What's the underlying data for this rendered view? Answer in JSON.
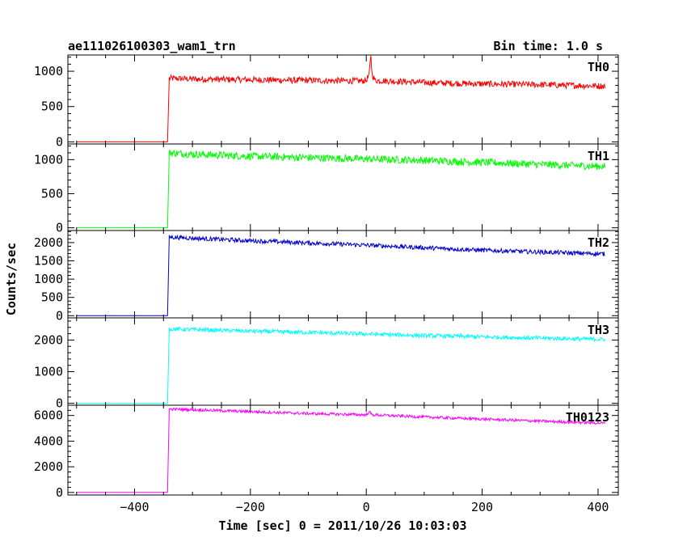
{
  "header": {
    "title": "ae111026100303_wam1_trn",
    "bin_time": "Bin time: 1.0 s"
  },
  "axes": {
    "xlabel": "Time [sec] 0 = 2011/10/26 10:03:03",
    "ylabel": "Counts/sec"
  },
  "chart_data": {
    "type": "line",
    "title": "ae111026100303_wam1_trn",
    "subtitle": "Bin time: 1.0 s",
    "xlabel": "Time [sec] 0 = 2011/10/26 10:03:03",
    "ylabel": "Counts/sec",
    "xlim": [
      -515,
      435
    ],
    "x_ticks": [
      -400,
      -200,
      0,
      200,
      400
    ],
    "x_tick_labels": [
      "−400",
      "−200",
      "0",
      "200",
      "400"
    ],
    "grid": false,
    "panels": [
      {
        "name": "TH0",
        "color": "#ff0000",
        "ylim": [
          -30,
          1230
        ],
        "y_ticks": [
          0,
          500,
          1000
        ],
        "baseline": 0,
        "points": [
          [
            -500,
            0
          ],
          [
            -343,
            0
          ],
          [
            -340,
            900
          ],
          [
            -300,
            890
          ],
          [
            -200,
            880
          ],
          [
            -100,
            870
          ],
          [
            -10,
            862
          ],
          [
            0,
            870
          ],
          [
            5,
            950
          ],
          [
            8,
            1230
          ],
          [
            10,
            960
          ],
          [
            15,
            870
          ],
          [
            100,
            840
          ],
          [
            200,
            820
          ],
          [
            300,
            810
          ],
          [
            412,
            790
          ]
        ],
        "noise": 45
      },
      {
        "name": "TH1",
        "color": "#00ff00",
        "ylim": [
          -40,
          1230
        ],
        "y_ticks": [
          0,
          500,
          1000
        ],
        "baseline": 0,
        "points": [
          [
            -500,
            0
          ],
          [
            -343,
            0
          ],
          [
            -340,
            1100
          ],
          [
            -300,
            1080
          ],
          [
            -200,
            1050
          ],
          [
            -100,
            1030
          ],
          [
            0,
            1010
          ],
          [
            100,
            990
          ],
          [
            200,
            960
          ],
          [
            300,
            930
          ],
          [
            412,
            900
          ]
        ],
        "noise": 55
      },
      {
        "name": "TH2",
        "color": "#0000cc",
        "ylim": [
          -60,
          2330
        ],
        "y_ticks": [
          0,
          500,
          1000,
          1500,
          2000
        ],
        "baseline": 0,
        "points": [
          [
            -500,
            0
          ],
          [
            -343,
            0
          ],
          [
            -340,
            2150
          ],
          [
            -300,
            2120
          ],
          [
            -200,
            2050
          ],
          [
            -100,
            1990
          ],
          [
            0,
            1930
          ],
          [
            100,
            1860
          ],
          [
            200,
            1790
          ],
          [
            300,
            1740
          ],
          [
            412,
            1690
          ]
        ],
        "noise": 60
      },
      {
        "name": "TH3",
        "color": "#00ffff",
        "ylim": [
          -60,
          2700
        ],
        "y_ticks": [
          0,
          1000,
          2000
        ],
        "baseline": 0,
        "points": [
          [
            -500,
            0
          ],
          [
            -343,
            0
          ],
          [
            -340,
            2350
          ],
          [
            -300,
            2330
          ],
          [
            -200,
            2280
          ],
          [
            -100,
            2240
          ],
          [
            0,
            2190
          ],
          [
            100,
            2140
          ],
          [
            200,
            2100
          ],
          [
            300,
            2060
          ],
          [
            412,
            2020
          ]
        ],
        "noise": 65
      },
      {
        "name": "TH0123",
        "color": "#ff00ff",
        "ylim": [
          -200,
          6800
        ],
        "y_ticks": [
          0,
          2000,
          4000,
          6000
        ],
        "baseline": 0,
        "points": [
          [
            -500,
            0
          ],
          [
            -343,
            0
          ],
          [
            -340,
            6500
          ],
          [
            -300,
            6450
          ],
          [
            -200,
            6300
          ],
          [
            -100,
            6150
          ],
          [
            0,
            6050
          ],
          [
            5,
            6300
          ],
          [
            10,
            6050
          ],
          [
            100,
            5880
          ],
          [
            200,
            5720
          ],
          [
            300,
            5560
          ],
          [
            412,
            5400
          ]
        ],
        "noise": 110
      }
    ]
  }
}
